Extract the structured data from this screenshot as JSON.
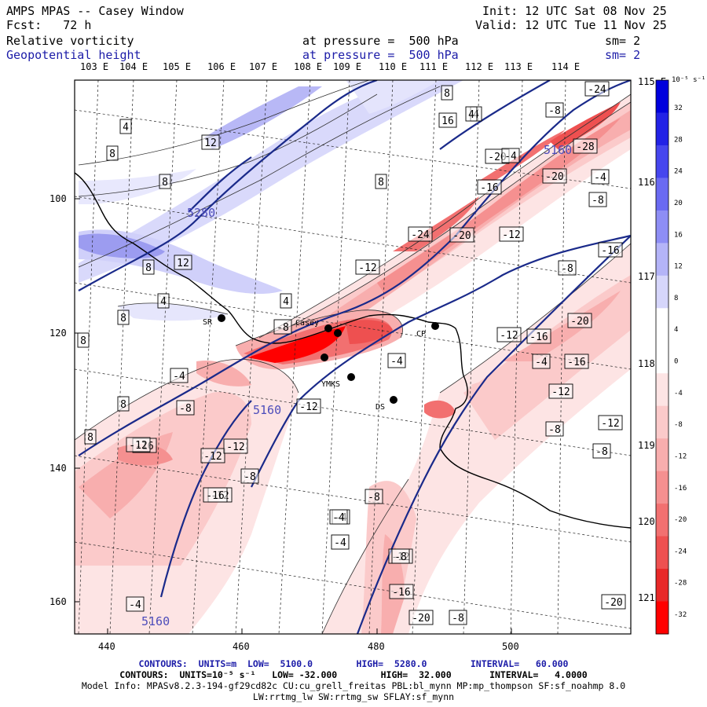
{
  "header": {
    "title": "AMPS MPAS -- Casey Window",
    "forecast": "Fcst:   72 h",
    "init": "Init: 12 UTC Sat 08 Nov 25",
    "valid": "Valid: 12 UTC Tue 11 Nov 25",
    "field1": {
      "name": "Relative vorticity",
      "pressure": "at pressure =  500 hPa",
      "sm": "sm= 2"
    },
    "field2": {
      "name": "Geopotential height",
      "pressure": "at pressure =  500 hPa",
      "sm": "sm= 2"
    }
  },
  "axes": {
    "top_longitudes": [
      "103 E",
      "104 E",
      "105 E",
      "106 E",
      "107 E",
      "108 E",
      "109 E",
      "110 E",
      "111 E",
      "112 E",
      "113 E",
      "114 E"
    ],
    "right_longitudes": [
      "115 E",
      "116 E",
      "117 E",
      "118 E",
      "119 E",
      "120 E",
      "121 E"
    ],
    "left_ticks": [
      "100",
      "120",
      "140",
      "160"
    ],
    "bottom_ticks": [
      "440",
      "460",
      "480",
      "500"
    ]
  },
  "colorbar": {
    "units": "10⁻⁵ s⁻¹",
    "labels": [
      "32",
      "28",
      "24",
      "20",
      "16",
      "12",
      "8",
      "4",
      "0",
      "-4",
      "-8",
      "-12",
      "-16",
      "-20",
      "-24",
      "-28",
      "-32"
    ],
    "colors": [
      "#0000dd",
      "#2222e6",
      "#4646ee",
      "#6a6af2",
      "#8e8ef5",
      "#b4b4f8",
      "#d6d6fb",
      "#ffffff",
      "#ffffff",
      "#fde4e4",
      "#fbcaca",
      "#f8aeae",
      "#f59090",
      "#f27070",
      "#ee5050",
      "#e82828",
      "#ff0000"
    ]
  },
  "map": {
    "stations": [
      "SR",
      "Casey",
      "CP",
      "YMKS",
      "DS"
    ],
    "height_contour_labels": [
      "5280",
      "5160",
      "5160",
      "5160"
    ],
    "vorticity_labels": [
      "4",
      "8",
      "8",
      "12",
      "8",
      "8",
      "8",
      "4",
      "-4",
      "-8",
      "-12",
      "-16",
      "-20",
      "-24",
      "-28",
      "-8",
      "-4",
      "-16",
      "-20",
      "-24",
      "-20",
      "-12",
      "-8",
      "-4",
      "-12",
      "-8",
      "-4",
      "-12",
      "-16",
      "-12",
      "-8",
      "-12",
      "-8",
      "-20",
      "-16",
      "-12",
      "-8",
      "-4",
      "-8",
      "-12",
      "-16",
      "-20",
      "4",
      "8",
      "16",
      "8",
      "12",
      "4",
      "8",
      "8",
      "-4",
      "-8",
      "-16",
      "-12",
      "-8",
      "-4",
      "-4",
      "-12",
      "-16",
      "-20",
      "-4",
      "-8",
      "4",
      "-12"
    ]
  },
  "footer": {
    "line1": "CONTOURS:  UNITS=m  LOW=  5100.0        HIGH=  5280.0        INTERVAL=   60.000",
    "line2": "CONTOURS:  UNITS=10⁻⁵ s⁻¹   LOW= -32.000        HIGH=  32.000       INTERVAL=   4.0000",
    "line3": "Model Info: MPASv8.2.3-194-gf29cd82c CU:cu_grell_freitas PBL:bl_mynn MP:mp_thompson SF:sf_noahmp 8.0",
    "line4": "LW:rrtmg_lw SW:rrtmg_sw SFLAY:sf_mynn"
  }
}
